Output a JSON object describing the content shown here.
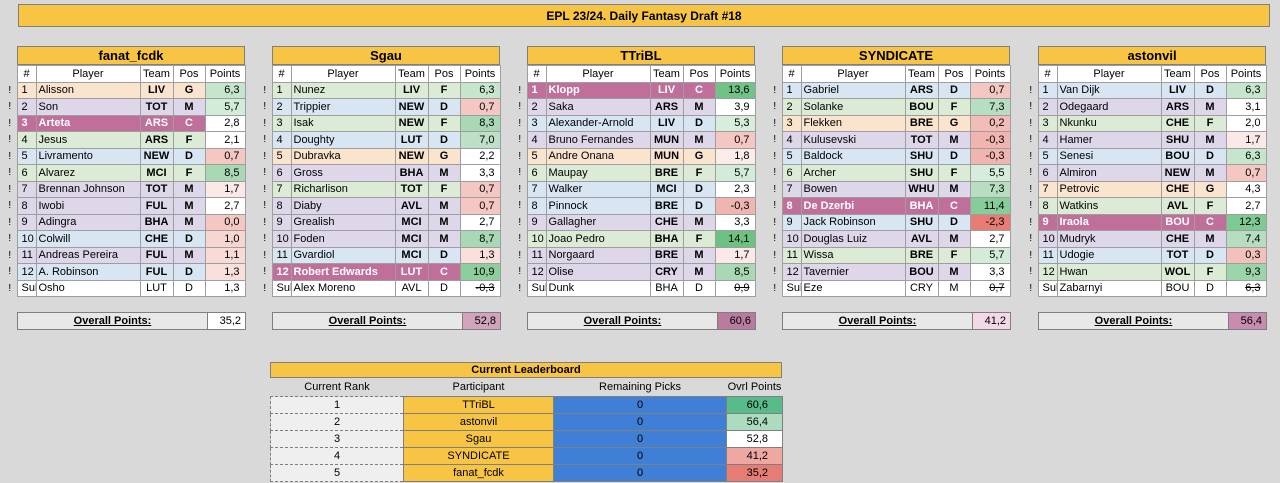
{
  "title": "EPL 23/24. Daily Fantasy Draft #18",
  "columns": {
    "num": "#",
    "player": "Player",
    "team": "Team",
    "pos": "Pos",
    "points": "Points"
  },
  "flag_char": "!",
  "overall_label": "Overall Points:",
  "colors": {
    "accent": "#f7c443",
    "captain": "#bf6f9a",
    "gk": "#fbe4ce",
    "def": "#d8e5f3",
    "mid": "#ded7ea",
    "fwd": "#dcebd6"
  },
  "teams": [
    {
      "name": "fanat_fcdk",
      "overall": "35,2",
      "overall_color": "#ffffff",
      "rows": [
        {
          "n": "1",
          "player": "Alisson",
          "team": "LIV",
          "pos": "G",
          "points": "6,3",
          "pc": "#c6e5cd"
        },
        {
          "n": "2",
          "player": "Son",
          "team": "TOT",
          "pos": "M",
          "points": "5,7",
          "pc": "#d3ecd9"
        },
        {
          "n": "3",
          "player": "Arteta",
          "team": "ARS",
          "pos": "C",
          "points": "2,8",
          "pc": "#ffffff"
        },
        {
          "n": "4",
          "player": "Jesus",
          "team": "ARS",
          "pos": "F",
          "points": "2,1",
          "pc": "#ffffff"
        },
        {
          "n": "5",
          "player": "Livramento",
          "team": "NEW",
          "pos": "D",
          "points": "0,7",
          "pc": "#f4c7c3"
        },
        {
          "n": "6",
          "player": "Alvarez",
          "team": "MCI",
          "pos": "F",
          "points": "8,5",
          "pc": "#a8d8b4"
        },
        {
          "n": "7",
          "player": "Brennan Johnson",
          "team": "TOT",
          "pos": "M",
          "points": "1,7",
          "pc": "#fbe9e7"
        },
        {
          "n": "8",
          "player": "Iwobi",
          "team": "FUL",
          "pos": "M",
          "points": "2,7",
          "pc": "#ffffff"
        },
        {
          "n": "9",
          "player": "Adingra",
          "team": "BHA",
          "pos": "M",
          "points": "0,0",
          "pc": "#f4c7c3"
        },
        {
          "n": "10",
          "player": "Colwill",
          "team": "CHE",
          "pos": "D",
          "points": "1,0",
          "pc": "#f7d5d1"
        },
        {
          "n": "11",
          "player": "Andreas Pereira",
          "team": "FUL",
          "pos": "M",
          "points": "1,1",
          "pc": "#f8dad7"
        },
        {
          "n": "12",
          "player": "A. Robinson",
          "team": "FUL",
          "pos": "D",
          "points": "1,3",
          "pc": "#f9e0dd"
        },
        {
          "n": "Sub",
          "player": "Osho",
          "team": "LUT",
          "pos": "D",
          "points": "1,3",
          "pc": "#f9e0dd",
          "sub": true
        }
      ]
    },
    {
      "name": "Sgau",
      "overall": "52,8",
      "overall_color": "#d1a3bd",
      "rows": [
        {
          "n": "1",
          "player": "Nunez",
          "team": "LIV",
          "pos": "F",
          "points": "6,3",
          "pc": "#c6e5cd"
        },
        {
          "n": "2",
          "player": "Trippier",
          "team": "NEW",
          "pos": "D",
          "points": "0,7",
          "pc": "#f4c7c3"
        },
        {
          "n": "3",
          "player": "Isak",
          "team": "NEW",
          "pos": "F",
          "points": "8,3",
          "pc": "#a8d8b4"
        },
        {
          "n": "4",
          "player": "Doughty",
          "team": "LUT",
          "pos": "D",
          "points": "7,0",
          "pc": "#bde0c6"
        },
        {
          "n": "5",
          "player": "Dubravka",
          "team": "NEW",
          "pos": "G",
          "points": "2,2",
          "pc": "#ffffff"
        },
        {
          "n": "6",
          "player": "Gross",
          "team": "BHA",
          "pos": "M",
          "points": "3,3",
          "pc": "#ffffff"
        },
        {
          "n": "7",
          "player": "Richarlison",
          "team": "TOT",
          "pos": "F",
          "points": "0,7",
          "pc": "#f4c7c3"
        },
        {
          "n": "8",
          "player": "Diaby",
          "team": "AVL",
          "pos": "M",
          "points": "0,7",
          "pc": "#f4c7c3"
        },
        {
          "n": "9",
          "player": "Grealish",
          "team": "MCI",
          "pos": "M",
          "points": "2,7",
          "pc": "#ffffff"
        },
        {
          "n": "10",
          "player": "Foden",
          "team": "MCI",
          "pos": "M",
          "points": "8,7",
          "pc": "#a8d8b4"
        },
        {
          "n": "11",
          "player": "Gvardiol",
          "team": "MCI",
          "pos": "D",
          "points": "1,3",
          "pc": "#f9e0dd"
        },
        {
          "n": "12",
          "player": "Robert Edwards",
          "team": "LUT",
          "pos": "C",
          "points": "10,9",
          "pc": "#8ccf9c"
        },
        {
          "n": "Sub",
          "player": "Alex Moreno",
          "team": "AVL",
          "pos": "D",
          "points": "-0,3",
          "pc": "#ffffff",
          "sub": true,
          "strike": true
        }
      ]
    },
    {
      "name": "TTriBL",
      "overall": "60,6",
      "overall_color": "#b97aa0",
      "rows": [
        {
          "n": "1",
          "player": "Klopp",
          "team": "LIV",
          "pos": "C",
          "points": "13,6",
          "pc": "#6fc386"
        },
        {
          "n": "2",
          "player": "Saka",
          "team": "ARS",
          "pos": "M",
          "points": "3,9",
          "pc": "#ffffff"
        },
        {
          "n": "3",
          "player": "Alexander-Arnold",
          "team": "LIV",
          "pos": "D",
          "points": "5,3",
          "pc": "#d8eedd"
        },
        {
          "n": "4",
          "player": "Bruno Fernandes",
          "team": "MUN",
          "pos": "M",
          "points": "0,7",
          "pc": "#f4c7c3"
        },
        {
          "n": "5",
          "player": "Andre Onana",
          "team": "MUN",
          "pos": "G",
          "points": "1,8",
          "pc": "#fbece9"
        },
        {
          "n": "6",
          "player": "Maupay",
          "team": "BRE",
          "pos": "F",
          "points": "5,7",
          "pc": "#d3ecd9"
        },
        {
          "n": "7",
          "player": "Walker",
          "team": "MCI",
          "pos": "D",
          "points": "2,3",
          "pc": "#ffffff"
        },
        {
          "n": "8",
          "player": "Pinnock",
          "team": "BRE",
          "pos": "D",
          "points": "-0,3",
          "pc": "#f0b5b0"
        },
        {
          "n": "9",
          "player": "Gallagher",
          "team": "CHE",
          "pos": "M",
          "points": "3,3",
          "pc": "#ffffff"
        },
        {
          "n": "10",
          "player": "Joao Pedro",
          "team": "BHA",
          "pos": "F",
          "points": "14,1",
          "pc": "#6bc283"
        },
        {
          "n": "11",
          "player": "Norgaard",
          "team": "BRE",
          "pos": "M",
          "points": "1,7",
          "pc": "#fbe9e7"
        },
        {
          "n": "12",
          "player": "Olise",
          "team": "CRY",
          "pos": "M",
          "points": "8,5",
          "pc": "#a8d8b4"
        },
        {
          "n": "Sub",
          "player": "Dunk",
          "team": "BHA",
          "pos": "D",
          "points": "0,9",
          "pc": "#ffffff",
          "sub": true,
          "strike": true
        }
      ]
    },
    {
      "name": "SYNDICATE",
      "overall": "41,2",
      "overall_color": "#f3d9e6",
      "rows": [
        {
          "n": "1",
          "player": "Gabriel",
          "team": "ARS",
          "pos": "D",
          "points": "0,7",
          "pc": "#f4c7c3"
        },
        {
          "n": "2",
          "player": "Solanke",
          "team": "BOU",
          "pos": "F",
          "points": "7,3",
          "pc": "#b8dec2"
        },
        {
          "n": "3",
          "player": "Flekken",
          "team": "BRE",
          "pos": "G",
          "points": "0,2",
          "pc": "#f2bdb8"
        },
        {
          "n": "4",
          "player": "Kulusevski",
          "team": "TOT",
          "pos": "M",
          "points": "-0,3",
          "pc": "#f0b5b0"
        },
        {
          "n": "5",
          "player": "Baldock",
          "team": "SHU",
          "pos": "D",
          "points": "-0,3",
          "pc": "#f0b5b0"
        },
        {
          "n": "6",
          "player": "Archer",
          "team": "SHU",
          "pos": "F",
          "points": "5,5",
          "pc": "#d6eddc"
        },
        {
          "n": "7",
          "player": "Bowen",
          "team": "WHU",
          "pos": "M",
          "points": "7,3",
          "pc": "#b8dec2"
        },
        {
          "n": "8",
          "player": "De Dzerbi",
          "team": "BHA",
          "pos": "C",
          "points": "11,4",
          "pc": "#87cd99"
        },
        {
          "n": "9",
          "player": "Jack Robinson",
          "team": "SHU",
          "pos": "D",
          "points": "-2,3",
          "pc": "#e67c73"
        },
        {
          "n": "10",
          "player": "Douglas Luiz",
          "team": "AVL",
          "pos": "M",
          "points": "2,7",
          "pc": "#ffffff"
        },
        {
          "n": "11",
          "player": "Wissa",
          "team": "BRE",
          "pos": "F",
          "points": "5,7",
          "pc": "#d3ecd9"
        },
        {
          "n": "12",
          "player": "Tavernier",
          "team": "BOU",
          "pos": "M",
          "points": "3,3",
          "pc": "#ffffff"
        },
        {
          "n": "Sub",
          "player": "Eze",
          "team": "CRY",
          "pos": "M",
          "points": "0,7",
          "pc": "#ffffff",
          "sub": true,
          "strike": true
        }
      ]
    },
    {
      "name": "astonvil",
      "overall": "56,4",
      "overall_color": "#c78cb0",
      "rows": [
        {
          "n": "1",
          "player": "Van Dijk",
          "team": "LIV",
          "pos": "D",
          "points": "6,3",
          "pc": "#c6e5cd"
        },
        {
          "n": "2",
          "player": "Odegaard",
          "team": "ARS",
          "pos": "M",
          "points": "3,1",
          "pc": "#ffffff"
        },
        {
          "n": "3",
          "player": "Nkunku",
          "team": "CHE",
          "pos": "F",
          "points": "2,0",
          "pc": "#ffffff"
        },
        {
          "n": "4",
          "player": "Hamer",
          "team": "SHU",
          "pos": "M",
          "points": "1,7",
          "pc": "#fbe9e7"
        },
        {
          "n": "5",
          "player": "Senesi",
          "team": "BOU",
          "pos": "D",
          "points": "6,3",
          "pc": "#c6e5cd"
        },
        {
          "n": "6",
          "player": "Almiron",
          "team": "NEW",
          "pos": "M",
          "points": "0,7",
          "pc": "#f4c7c3"
        },
        {
          "n": "7",
          "player": "Petrovic",
          "team": "CHE",
          "pos": "G",
          "points": "4,3",
          "pc": "#ffffff"
        },
        {
          "n": "8",
          "player": "Watkins",
          "team": "AVL",
          "pos": "F",
          "points": "2,7",
          "pc": "#ffffff"
        },
        {
          "n": "9",
          "player": "Iraola",
          "team": "BOU",
          "pos": "C",
          "points": "12,3",
          "pc": "#7dca92"
        },
        {
          "n": "10",
          "player": "Mudryk",
          "team": "CHE",
          "pos": "M",
          "points": "7,4",
          "pc": "#b6ddc0"
        },
        {
          "n": "11",
          "player": "Udogie",
          "team": "TOT",
          "pos": "D",
          "points": "0,3",
          "pc": "#f3c0bb"
        },
        {
          "n": "12",
          "player": "Hwan",
          "team": "WOL",
          "pos": "F",
          "points": "9,3",
          "pc": "#9cd4aa"
        },
        {
          "n": "Sub",
          "player": "Zabarnyi",
          "team": "BOU",
          "pos": "D",
          "points": "6,3",
          "pc": "#ffffff",
          "sub": true,
          "strike": true
        }
      ]
    }
  ],
  "leaderboard": {
    "title": "Current Leaderboard",
    "headers": [
      "Current Rank",
      "Participant",
      "Remaining Picks",
      "Ovrl Points"
    ],
    "rows": [
      {
        "rank": "1",
        "participant": "TTriBL",
        "remaining": "0",
        "points": "60,6",
        "pc": "#57bb8a"
      },
      {
        "rank": "2",
        "participant": "astonvil",
        "remaining": "0",
        "points": "56,4",
        "pc": "#abdcbf"
      },
      {
        "rank": "3",
        "participant": "Sgau",
        "remaining": "0",
        "points": "52,8",
        "pc": "#ffffff"
      },
      {
        "rank": "4",
        "participant": "SYNDICATE",
        "remaining": "0",
        "points": "41,2",
        "pc": "#efa7a1"
      },
      {
        "rank": "5",
        "participant": "fanat_fcdk",
        "remaining": "0",
        "points": "35,2",
        "pc": "#e67c73"
      }
    ]
  }
}
